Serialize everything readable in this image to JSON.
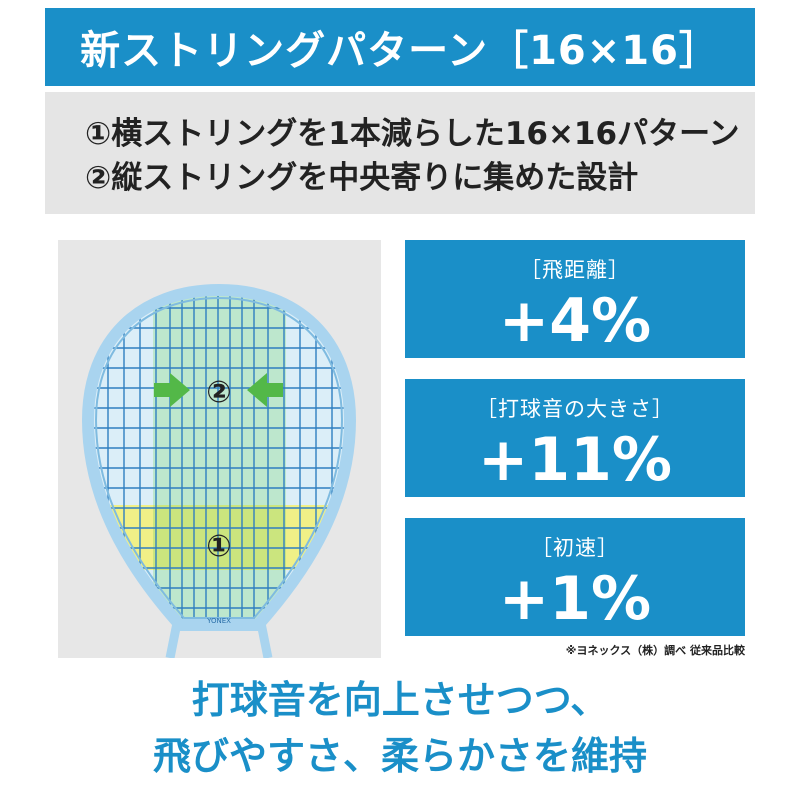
{
  "header": {
    "title": "新ストリングパターン［16×16］"
  },
  "points": [
    "①横ストリングを1本減らした16×16パターン",
    "②縦ストリングを中央寄りに集めた設計"
  ],
  "racket": {
    "marker_center": "②",
    "marker_lower": "①",
    "brand_mark": "YONEX"
  },
  "stats": [
    {
      "label": "［飛距離］",
      "value": "+4%"
    },
    {
      "label": "［打球音の大きさ］",
      "value": "+11%"
    },
    {
      "label": "［初速］",
      "value": "+1%"
    }
  ],
  "note": "※ヨネックス（株）調べ 従来品比較",
  "tagline": {
    "line1": "打球音を向上させつつ、",
    "line2": "飛びやすさ、柔らかさを維持"
  },
  "colors": {
    "brand_blue": "#1a8fc8",
    "frame_blue": "#a9d4ef",
    "highlight_green": "#b9e6c8",
    "highlight_yellow": "#f2f07a",
    "arrow_green": "#53b848"
  }
}
